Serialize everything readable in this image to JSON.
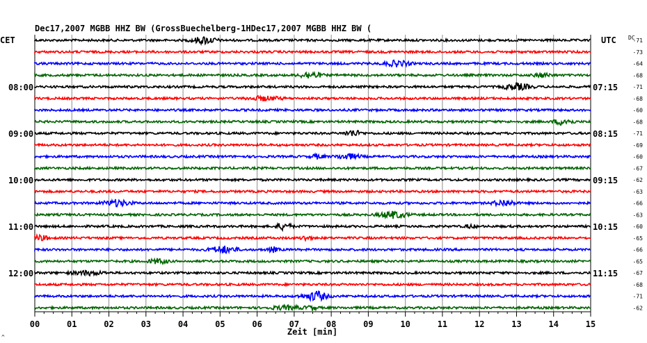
{
  "header": {
    "title": "Dec17,2007   MGBB HHZ BW (GrossBuechelberg-1HDec17,2007   MGBB HHZ BW ("
  },
  "labels": {
    "left_zone": "CET",
    "right_zone": "UTC",
    "dc": "DC",
    "xlabel": "Zeit [min]",
    "corner": "^"
  },
  "colors": {
    "trace_cycle": [
      "#000000",
      "#ff0000",
      "#0000ff",
      "#006400"
    ],
    "grid": "#000000",
    "background": "#ffffff"
  },
  "chart_data": {
    "type": "line",
    "title": "Dec17,2007   MGBB HHZ BW (GrossBuechelberg-1HDec17,2007   MGBB HHZ BW (",
    "xlabel": "Zeit [min]",
    "ylabel": "",
    "xlim": [
      0,
      15
    ],
    "x_ticks": [
      "00",
      "01",
      "02",
      "03",
      "04",
      "05",
      "06",
      "07",
      "08",
      "09",
      "10",
      "11",
      "12",
      "13",
      "14",
      "15"
    ],
    "row_count": 24,
    "rows_per_hour": 4,
    "left_time_labels": [
      {
        "row": 4,
        "text": "08:00"
      },
      {
        "row": 8,
        "text": "09:00"
      },
      {
        "row": 12,
        "text": "10:00"
      },
      {
        "row": 16,
        "text": "11:00"
      },
      {
        "row": 20,
        "text": "12:00"
      }
    ],
    "right_time_labels": [
      {
        "row": 4,
        "text": "07:15"
      },
      {
        "row": 8,
        "text": "08:15"
      },
      {
        "row": 12,
        "text": "09:15"
      },
      {
        "row": 16,
        "text": "10:15"
      },
      {
        "row": 20,
        "text": "11:15"
      }
    ],
    "dc_offsets": [
      "-71",
      "-73",
      "-64",
      "-68",
      "-71",
      "-68",
      "-60",
      "-68",
      "-71",
      "-69",
      "-60",
      "-67",
      "-62",
      "-63",
      "-66",
      "-63",
      "-60",
      "-65",
      "-66",
      "-65",
      "-67",
      "-68",
      "-71",
      "-62"
    ],
    "grid": true
  }
}
